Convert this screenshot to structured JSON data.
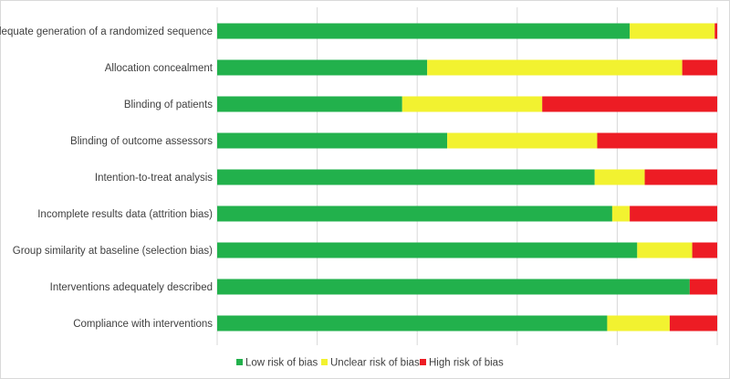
{
  "chart_data": {
    "type": "bar",
    "orientation": "horizontal",
    "stacked": true,
    "percent_stacked": true,
    "categories": [
      "Adequate generation of a randomized sequence",
      "Allocation concealment",
      "Blinding of patients",
      "Blinding of outcome assessors",
      "Intention-to-treat analysis",
      "Incomplete results data (attrition bias)",
      "Group similarity at baseline (selection bias)",
      "Interventions adequately described",
      "Compliance with interventions"
    ],
    "series": [
      {
        "name": "Low risk of bias",
        "color": "#22b14c",
        "values": [
          82.5,
          42.0,
          37.0,
          46.0,
          75.5,
          79.0,
          84.0,
          94.5,
          78.0
        ]
      },
      {
        "name": "Unclear risk of bias",
        "color": "#f2f230",
        "values": [
          17.0,
          51.0,
          28.0,
          30.0,
          10.0,
          3.5,
          11.0,
          0.0,
          12.5
        ]
      },
      {
        "name": "High risk of bias",
        "color": "#ed1c24",
        "values": [
          0.5,
          7.0,
          35.0,
          24.0,
          14.5,
          17.5,
          5.0,
          5.5,
          9.5
        ]
      }
    ],
    "xlim": [
      0,
      100
    ],
    "x_gridlines": 5,
    "grid": true,
    "legend_position": "bottom"
  }
}
